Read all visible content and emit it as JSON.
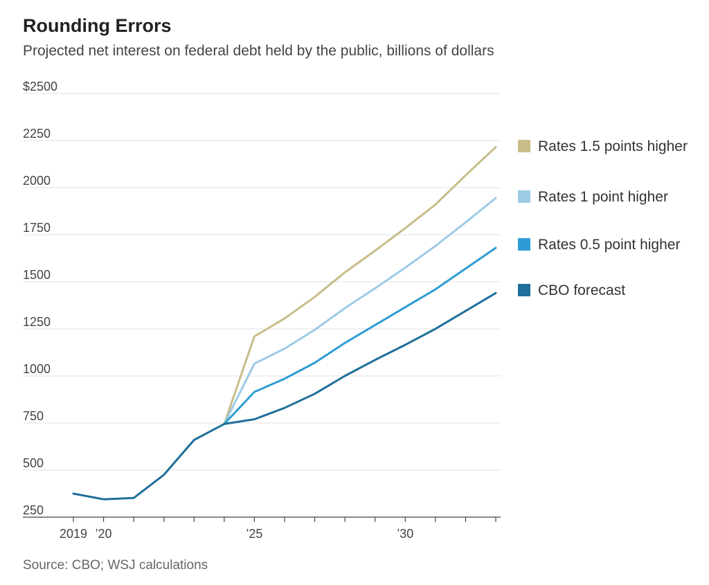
{
  "header": {
    "title": "Rounding Errors",
    "subtitle": "Projected net interest on federal debt held by the public, billions of dollars"
  },
  "footer": {
    "source": "Source: CBO; WSJ calculations"
  },
  "colors": {
    "rates_1_5": "#c8bd89",
    "rates_1": "#9ccbe6",
    "rates_0_5": "#2e9cd4",
    "cbo": "#1f6f9a",
    "grid": "#e2e2e2"
  },
  "chart_data": {
    "type": "line",
    "title": "Rounding Errors",
    "subtitle": "Projected net interest on federal debt held by the public, billions of dollars",
    "xlabel": "",
    "ylabel": "",
    "x": [
      2019,
      2020,
      2021,
      2022,
      2023,
      2024,
      2025,
      2026,
      2027,
      2028,
      2029,
      2030,
      2031,
      2032,
      2033
    ],
    "x_tick_labels": [
      {
        "x": 2019,
        "label": "2019"
      },
      {
        "x": 2020,
        "label": "’20"
      },
      {
        "x": 2025,
        "label": "’25"
      },
      {
        "x": 2030,
        "label": "’30"
      }
    ],
    "y_ticks": [
      250,
      500,
      750,
      1000,
      1250,
      1500,
      1750,
      2000,
      2250,
      2500
    ],
    "y_tick_labels": [
      "250",
      "500",
      "750",
      "1000",
      "1250",
      "1500",
      "1750",
      "2000",
      "2250",
      "$2500"
    ],
    "ylim": [
      250,
      2500
    ],
    "xlim": [
      2019,
      2033
    ],
    "grid": true,
    "legend_position": "right",
    "series": [
      {
        "name": "Rates 1.5 points higher",
        "color_key": "rates_1_5",
        "x": [
          2024,
          2025,
          2026,
          2027,
          2028,
          2029,
          2030,
          2031,
          2032,
          2033
        ],
        "values": [
          745,
          1210,
          1305,
          1420,
          1550,
          1665,
          1785,
          1910,
          2065,
          2215
        ]
      },
      {
        "name": "Rates 1 point higher",
        "color_key": "rates_1",
        "x": [
          2024,
          2025,
          2026,
          2027,
          2028,
          2029,
          2030,
          2031,
          2032,
          2033
        ],
        "values": [
          745,
          1065,
          1145,
          1245,
          1360,
          1465,
          1575,
          1690,
          1815,
          1945
        ]
      },
      {
        "name": "Rates 0.5 point higher",
        "color_key": "rates_0_5",
        "x": [
          2024,
          2025,
          2026,
          2027,
          2028,
          2029,
          2030,
          2031,
          2032,
          2033
        ],
        "values": [
          745,
          915,
          985,
          1070,
          1175,
          1270,
          1365,
          1460,
          1570,
          1680
        ]
      },
      {
        "name": "CBO forecast",
        "color_key": "cbo",
        "x": [
          2019,
          2020,
          2021,
          2022,
          2023,
          2024,
          2025,
          2026,
          2027,
          2028,
          2029,
          2030,
          2031,
          2032,
          2033
        ],
        "values": [
          375,
          345,
          352,
          475,
          660,
          745,
          770,
          830,
          905,
          1000,
          1085,
          1165,
          1250,
          1345,
          1440
        ]
      }
    ],
    "legend_order": [
      "Rates 1.5 points higher",
      "Rates 1 point higher",
      "Rates 0.5 point higher",
      "CBO forecast"
    ]
  }
}
